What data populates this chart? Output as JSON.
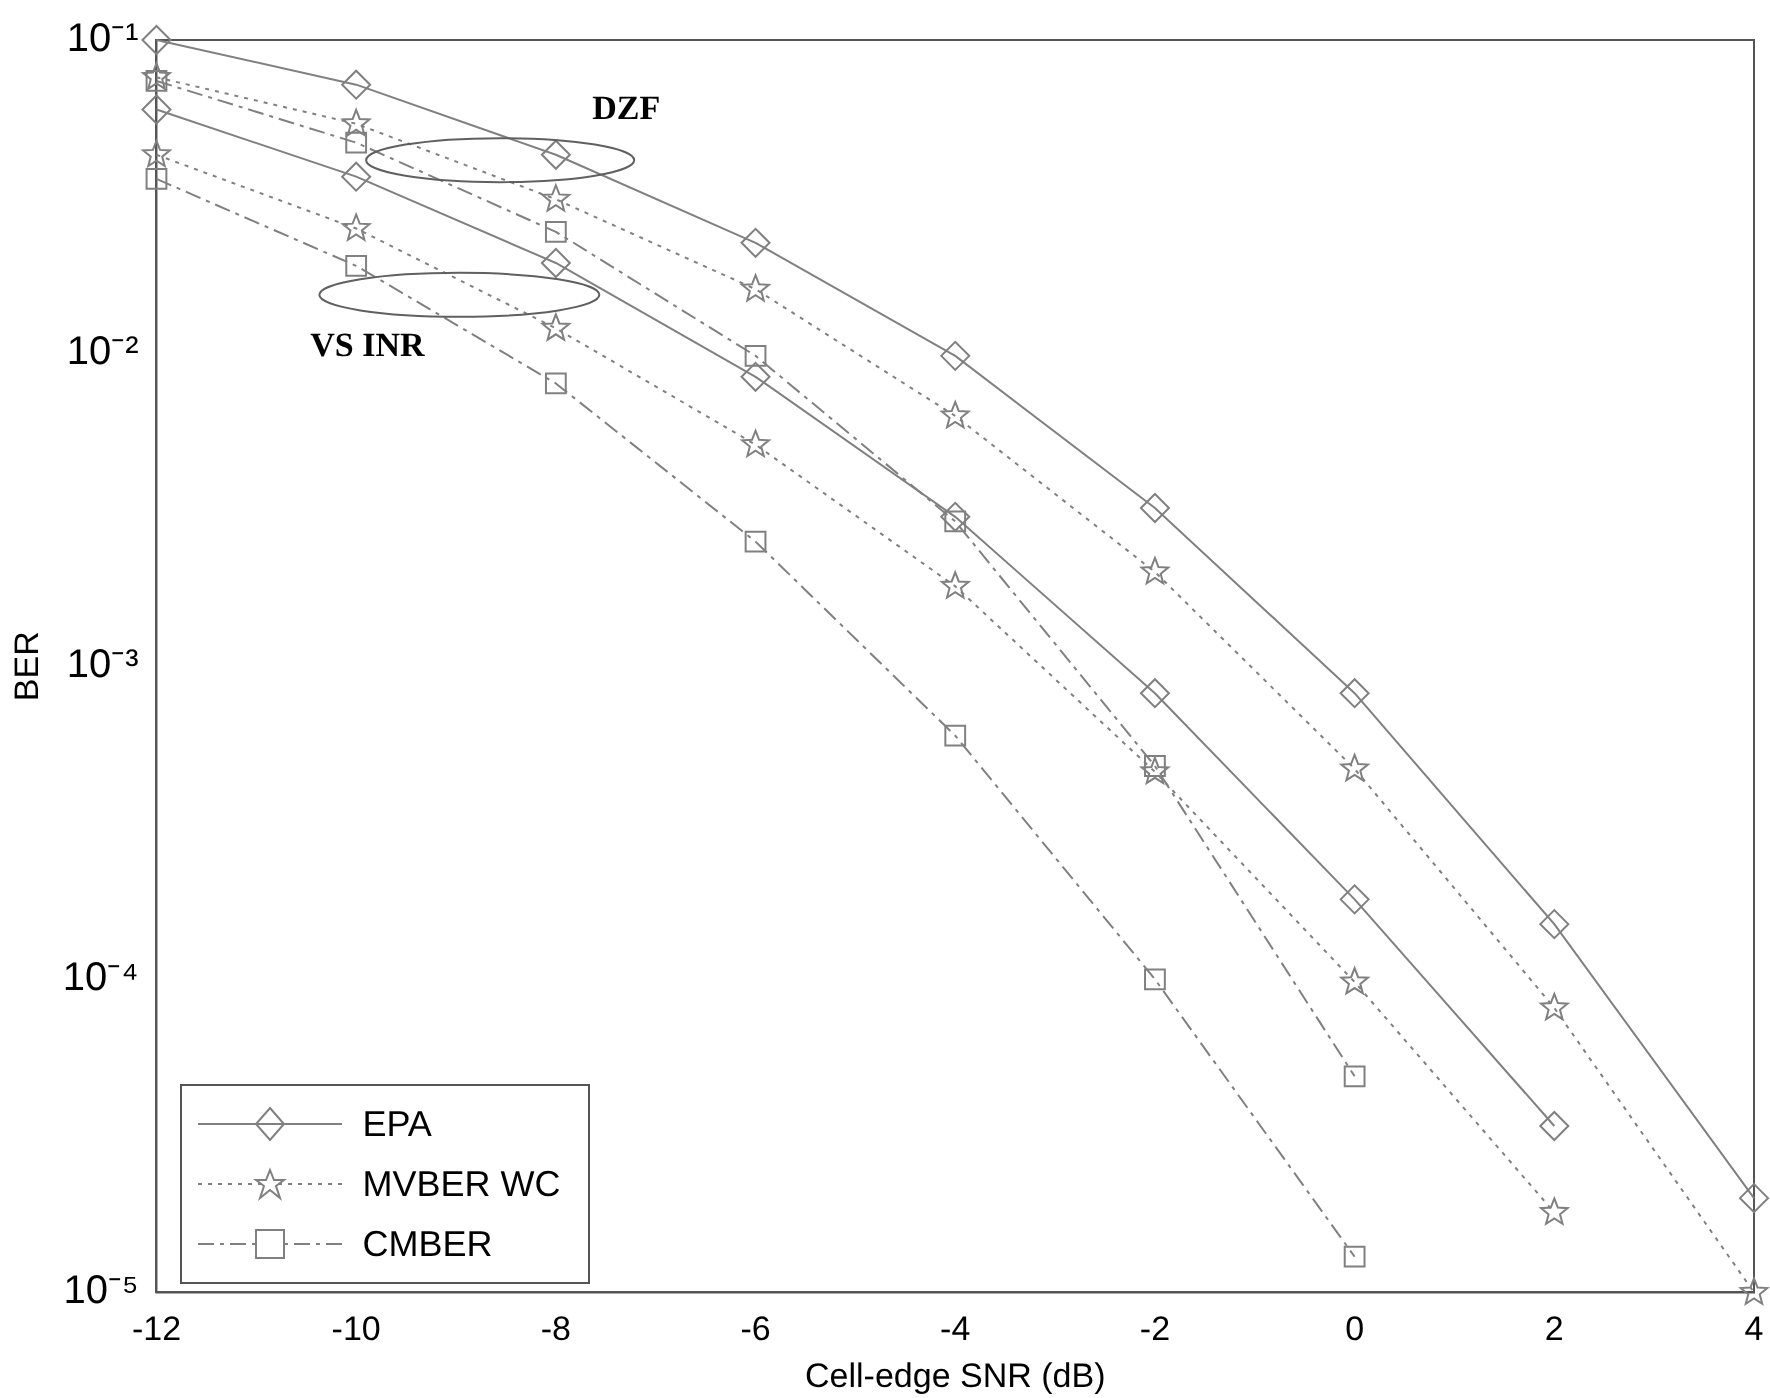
{
  "chart_data": {
    "type": "line",
    "xlabel": "Cell-edge SNR (dB)",
    "ylabel": "BER",
    "log": "y",
    "legend": "bottom left",
    "grid": false,
    "x": [
      -12,
      -10,
      -8,
      -6,
      -4,
      -2,
      0,
      2,
      4
    ],
    "xlim": [
      -12,
      4
    ],
    "xticks": [
      -12,
      -10,
      -8,
      -6,
      -4,
      -2,
      0,
      2,
      4
    ],
    "ylim": [
      1e-05,
      0.1
    ],
    "yticks": [
      {
        "value": 1e-05,
        "label": "10⁻⁵"
      },
      {
        "value": 0.0001,
        "label": "10⁻⁴"
      },
      {
        "value": 0.001,
        "label": "10⁻³"
      },
      {
        "value": 0.01,
        "label": "10⁻²"
      },
      {
        "value": 0.1,
        "label": "10⁻¹"
      }
    ],
    "annotations": [
      "DZF",
      "VS INR"
    ],
    "series": [
      {
        "name": "EPA",
        "color": "#808080",
        "marker": "diamond",
        "line_style": "solid",
        "values": [
          0.1,
          0.072,
          0.043,
          0.0225,
          0.0098,
          0.0032,
          0.00082,
          0.00015,
          2e-05
        ]
      },
      {
        "name": "MVBER WC",
        "color": "#808080",
        "marker": "star",
        "line_style": "dotted",
        "values": [
          0.076,
          0.054,
          0.031,
          0.016,
          0.0063,
          0.002,
          0.00047,
          8.1e-05,
          1e-05
        ]
      },
      {
        "name": "CMBER",
        "color": "#808080",
        "marker": "square",
        "line_style": "dashdot",
        "values": [
          0.074,
          0.047,
          0.0244,
          0.0098,
          0.0029,
          0.00048,
          4.9e-05,
          null,
          null
        ]
      },
      {
        "color": "#808080",
        "marker": "diamond",
        "line_style": "solid",
        "values": [
          0.06,
          0.0366,
          0.0194,
          0.0084,
          0.003,
          0.00082,
          0.00018,
          3.4e-05,
          null
        ]
      },
      {
        "color": "#808080",
        "marker": "star",
        "line_style": "dotted",
        "values": [
          0.043,
          0.025,
          0.012,
          0.0051,
          0.0018,
          0.00046,
          9.8e-05,
          1.8e-05,
          null
        ]
      },
      {
        "color": "#808080",
        "marker": "square",
        "line_style": "dashdot",
        "values": [
          0.036,
          0.019,
          0.008,
          0.0025,
          0.0006,
          0.0001,
          1.3e-05,
          null,
          null
        ]
      }
    ]
  }
}
